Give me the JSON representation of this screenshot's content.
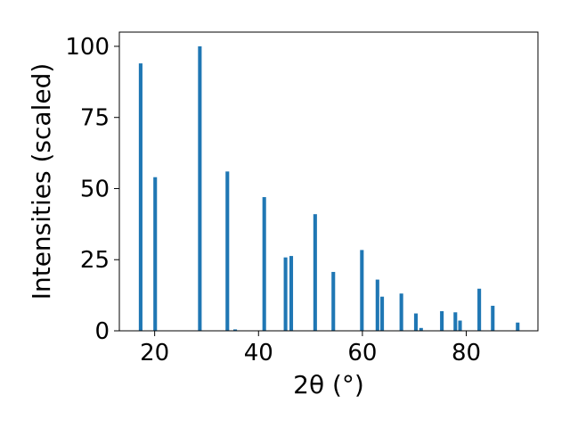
{
  "chart_data": {
    "type": "bar",
    "title": "",
    "xlabel": "2θ (°)",
    "ylabel": "Intensities (scaled)",
    "xlim": [
      13.2,
      93.8
    ],
    "ylim": [
      0,
      105
    ],
    "xticks": [
      20,
      40,
      60,
      80
    ],
    "yticks": [
      0,
      25,
      50,
      75,
      100
    ],
    "bar_width": 0.7,
    "color": "#1f77b4",
    "grid": false,
    "legend": "none",
    "points": [
      {
        "x": 17.3,
        "y": 94
      },
      {
        "x": 20.1,
        "y": 54
      },
      {
        "x": 28.7,
        "y": 100
      },
      {
        "x": 34.0,
        "y": 56
      },
      {
        "x": 35.5,
        "y": 0.5
      },
      {
        "x": 41.1,
        "y": 47
      },
      {
        "x": 45.2,
        "y": 25.8
      },
      {
        "x": 46.3,
        "y": 26.3
      },
      {
        "x": 50.9,
        "y": 41
      },
      {
        "x": 54.4,
        "y": 20.7
      },
      {
        "x": 59.9,
        "y": 28.4
      },
      {
        "x": 62.9,
        "y": 18
      },
      {
        "x": 63.8,
        "y": 12
      },
      {
        "x": 67.5,
        "y": 13.1
      },
      {
        "x": 70.3,
        "y": 6.1
      },
      {
        "x": 71.3,
        "y": 1
      },
      {
        "x": 75.3,
        "y": 6.9
      },
      {
        "x": 77.9,
        "y": 6.5
      },
      {
        "x": 78.8,
        "y": 3.6
      },
      {
        "x": 82.5,
        "y": 14.8
      },
      {
        "x": 85.1,
        "y": 8.8
      },
      {
        "x": 89.9,
        "y": 2.9
      }
    ]
  }
}
